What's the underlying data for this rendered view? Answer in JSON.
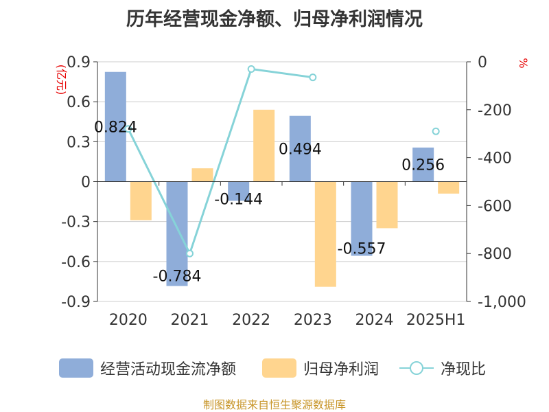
{
  "title": "历年经营现金净额、归母净利润情况",
  "source": "制图数据来自恒生聚源数据库",
  "colors": {
    "cashflow": "#8fadd9",
    "profit": "#ffd58f",
    "ratio": "#86d3d8",
    "axis_unit": "#e60000"
  },
  "chart_data": {
    "type": "bar",
    "categories": [
      "2020",
      "2021",
      "2022",
      "2023",
      "2024",
      "2025H1"
    ],
    "series": [
      {
        "name": "经营活动现金流净额",
        "type": "bar",
        "axis": "left",
        "values": [
          0.824,
          -0.784,
          -0.144,
          0.494,
          -0.557,
          0.256
        ],
        "labels": [
          "0.824",
          "-0.784",
          "-0.144",
          "0.494",
          "-0.557",
          "0.256"
        ]
      },
      {
        "name": "归母净利润",
        "type": "bar",
        "axis": "left",
        "values": [
          -0.29,
          0.1,
          0.54,
          -0.79,
          -0.35,
          -0.09
        ]
      },
      {
        "name": "净现比",
        "type": "line",
        "axis": "right",
        "values": [
          -280,
          -800,
          -30,
          -65,
          null,
          -290
        ]
      }
    ],
    "left_axis": {
      "label": "(亿元)",
      "ylim": [
        -0.9,
        0.9
      ],
      "ticks": [
        0.9,
        0.6,
        0.3,
        0,
        -0.3,
        -0.6,
        -0.9
      ],
      "tick_labels": [
        "0.9",
        "0.6",
        "0.3",
        "0",
        "-0.3",
        "-0.6",
        "-0.9"
      ]
    },
    "right_axis": {
      "label": "%",
      "ylim": [
        -1000,
        0
      ],
      "ticks": [
        0,
        -200,
        -400,
        -600,
        -800,
        -1000
      ],
      "tick_labels": [
        "0",
        "-200",
        "-400",
        "-600",
        "-800",
        "-1,000"
      ]
    },
    "grid": true,
    "legend_position": "bottom"
  },
  "legend": [
    {
      "label": "经营活动现金流净额"
    },
    {
      "label": "归母净利润"
    },
    {
      "label": "净现比"
    }
  ]
}
